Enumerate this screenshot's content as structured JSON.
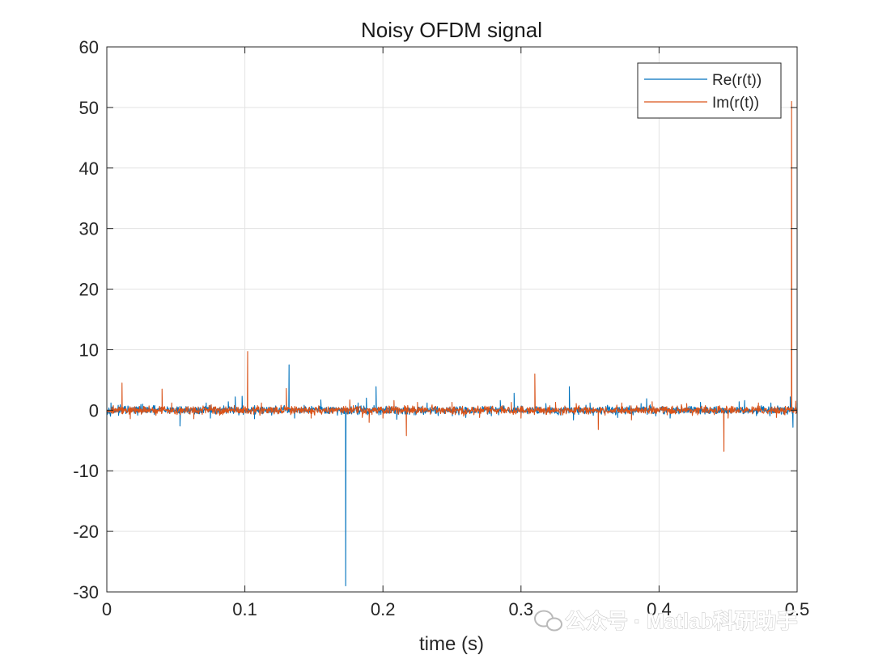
{
  "chart_data": {
    "type": "line",
    "title": "Noisy OFDM signal",
    "xlabel": "time (s)",
    "ylabel": "",
    "xlim": [
      0,
      0.5
    ],
    "ylim": [
      -30,
      60
    ],
    "xticks": [
      0,
      0.1,
      0.2,
      0.3,
      0.4,
      0.5
    ],
    "xtick_labels": [
      "0",
      "0.1",
      "0.2",
      "0.3",
      "0.4",
      "0.5"
    ],
    "yticks": [
      -30,
      -20,
      -10,
      0,
      10,
      20,
      30,
      40,
      50,
      60
    ],
    "ytick_labels": [
      "-30",
      "-20",
      "-10",
      "0",
      "10",
      "20",
      "30",
      "40",
      "50",
      "60"
    ],
    "grid": true,
    "legend": {
      "position": "top-right"
    },
    "noise": {
      "samples": 1700,
      "amplitude": 0.45
    },
    "series": [
      {
        "name": "Re(r(t))",
        "color": "#0072BD",
        "spikes": [
          {
            "x": 0.003,
            "y": 1.2
          },
          {
            "x": 0.026,
            "y": 1.0
          },
          {
            "x": 0.053,
            "y": -2.6
          },
          {
            "x": 0.072,
            "y": 1.2
          },
          {
            "x": 0.075,
            "y": -1.3
          },
          {
            "x": 0.088,
            "y": 1.4
          },
          {
            "x": 0.093,
            "y": 2.2
          },
          {
            "x": 0.098,
            "y": 2.3
          },
          {
            "x": 0.107,
            "y": -1.4
          },
          {
            "x": 0.132,
            "y": 7.5
          },
          {
            "x": 0.136,
            "y": -1.3
          },
          {
            "x": 0.155,
            "y": 1.7
          },
          {
            "x": 0.173,
            "y": -29.0
          },
          {
            "x": 0.182,
            "y": 1.2
          },
          {
            "x": 0.188,
            "y": 2.0
          },
          {
            "x": 0.195,
            "y": 3.9
          },
          {
            "x": 0.21,
            "y": -1.5
          },
          {
            "x": 0.232,
            "y": 1.2
          },
          {
            "x": 0.26,
            "y": -1.2
          },
          {
            "x": 0.285,
            "y": 1.6
          },
          {
            "x": 0.295,
            "y": 2.8
          },
          {
            "x": 0.318,
            "y": 1.1
          },
          {
            "x": 0.335,
            "y": 3.9
          },
          {
            "x": 0.338,
            "y": -1.6
          },
          {
            "x": 0.35,
            "y": 1.2
          },
          {
            "x": 0.37,
            "y": -1.2
          },
          {
            "x": 0.387,
            "y": 1.1
          },
          {
            "x": 0.391,
            "y": 1.9
          },
          {
            "x": 0.408,
            "y": -1.3
          },
          {
            "x": 0.43,
            "y": 1.3
          },
          {
            "x": 0.458,
            "y": 1.4
          },
          {
            "x": 0.462,
            "y": 1.6
          },
          {
            "x": 0.481,
            "y": 1.2
          },
          {
            "x": 0.495,
            "y": 2.2
          },
          {
            "x": 0.497,
            "y": -2.8
          },
          {
            "x": 0.5,
            "y": 1.2
          }
        ]
      },
      {
        "name": "Im(r(t))",
        "color": "#D95319",
        "spikes": [
          {
            "x": 0.011,
            "y": 4.5
          },
          {
            "x": 0.017,
            "y": -1.4
          },
          {
            "x": 0.04,
            "y": 3.5
          },
          {
            "x": 0.047,
            "y": 1.2
          },
          {
            "x": 0.063,
            "y": -1.4
          },
          {
            "x": 0.102,
            "y": 9.7
          },
          {
            "x": 0.112,
            "y": 1.2
          },
          {
            "x": 0.13,
            "y": 3.6
          },
          {
            "x": 0.148,
            "y": -1.3
          },
          {
            "x": 0.176,
            "y": 1.7
          },
          {
            "x": 0.185,
            "y": -1.2
          },
          {
            "x": 0.19,
            "y": -2.0
          },
          {
            "x": 0.2,
            "y": -1.3
          },
          {
            "x": 0.208,
            "y": 1.6
          },
          {
            "x": 0.217,
            "y": -4.2
          },
          {
            "x": 0.225,
            "y": 1.3
          },
          {
            "x": 0.25,
            "y": 1.3
          },
          {
            "x": 0.27,
            "y": -1.2
          },
          {
            "x": 0.293,
            "y": 1.3
          },
          {
            "x": 0.3,
            "y": -1.3
          },
          {
            "x": 0.31,
            "y": 6.0
          },
          {
            "x": 0.325,
            "y": 1.3
          },
          {
            "x": 0.34,
            "y": 1.1
          },
          {
            "x": 0.356,
            "y": -3.2
          },
          {
            "x": 0.373,
            "y": 1.2
          },
          {
            "x": 0.38,
            "y": -1.6
          },
          {
            "x": 0.395,
            "y": 1.4
          },
          {
            "x": 0.42,
            "y": 1.1
          },
          {
            "x": 0.45,
            "y": -1.3
          },
          {
            "x": 0.447,
            "y": -6.8
          },
          {
            "x": 0.472,
            "y": 1.2
          },
          {
            "x": 0.485,
            "y": -1.2
          },
          {
            "x": 0.496,
            "y": 51.0
          },
          {
            "x": 0.499,
            "y": 1.5
          }
        ]
      }
    ]
  },
  "watermark": {
    "text": "公众号 · Matlab科研助手",
    "icon": "wechat-icon"
  }
}
